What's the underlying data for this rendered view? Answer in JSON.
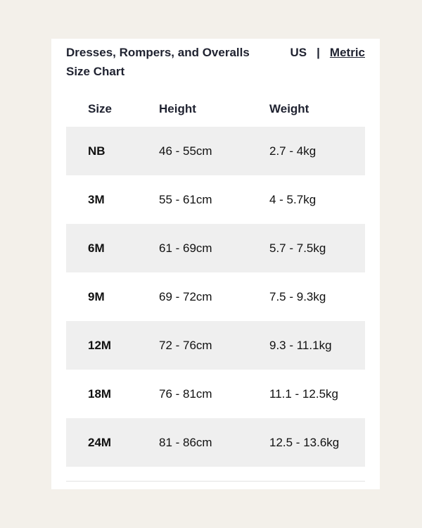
{
  "header": {
    "title": "Dresses, Rompers, and Overalls Size Chart",
    "unit_us": "US",
    "unit_separator": "|",
    "unit_metric": "Metric"
  },
  "table": {
    "columns": [
      "Size",
      "Height",
      "Weight"
    ],
    "rows": [
      {
        "size": "NB",
        "height": "46 - 55cm",
        "weight": "2.7 - 4kg"
      },
      {
        "size": "3M",
        "height": "55 - 61cm",
        "weight": "4 - 5.7kg"
      },
      {
        "size": "6M",
        "height": "61 - 69cm",
        "weight": "5.7 - 7.5kg"
      },
      {
        "size": "9M",
        "height": "69 - 72cm",
        "weight": "7.5 - 9.3kg"
      },
      {
        "size": "12M",
        "height": "72 - 76cm",
        "weight": "9.3 - 11.1kg"
      },
      {
        "size": "18M",
        "height": "76 - 81cm",
        "weight": "11.1 - 12.5kg"
      },
      {
        "size": "24M",
        "height": "81 - 86cm",
        "weight": "12.5 - 13.6kg"
      }
    ]
  }
}
